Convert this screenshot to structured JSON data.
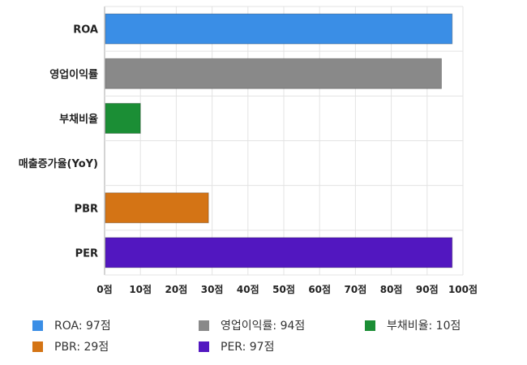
{
  "chart_data": {
    "type": "bar",
    "orientation": "horizontal",
    "categories": [
      "ROA",
      "영업이익률",
      "부채비율",
      "매출증가율(YoY)",
      "PBR",
      "PER"
    ],
    "values": [
      97,
      94,
      10,
      0,
      29,
      97
    ],
    "colors": [
      "#3A8EE6",
      "#898989",
      "#1B8E35",
      "#1B8E35",
      "#D47415",
      "#5217C0"
    ],
    "xlim": [
      0,
      100
    ],
    "x_ticks": [
      0,
      10,
      20,
      30,
      40,
      50,
      60,
      70,
      80,
      90,
      100
    ],
    "tick_suffix": "점",
    "grid": true,
    "legend_position": "bottom",
    "legend": [
      {
        "label": "ROA: 97점",
        "color": "#3A8EE6"
      },
      {
        "label": "영업이익률: 94점",
        "color": "#898989"
      },
      {
        "label": "부채비율: 10점",
        "color": "#1B8E35"
      },
      {
        "label": "PBR: 29점",
        "color": "#D47415"
      },
      {
        "label": "PER: 97점",
        "color": "#5217C0"
      }
    ]
  }
}
